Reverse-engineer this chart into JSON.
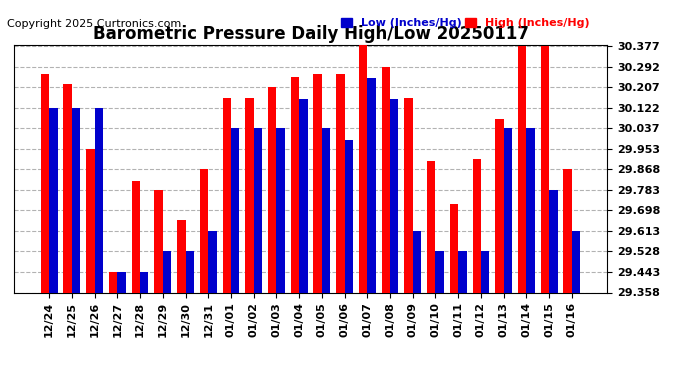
{
  "title": "Barometric Pressure Daily High/Low 20250117",
  "copyright": "Copyright 2025 Curtronics.com",
  "legend_low": "Low (Inches/Hg)",
  "legend_high": "High (Inches/Hg)",
  "categories": [
    "12/24",
    "12/25",
    "12/26",
    "12/27",
    "12/28",
    "12/29",
    "12/30",
    "12/31",
    "01/01",
    "01/02",
    "01/03",
    "01/04",
    "01/05",
    "01/06",
    "01/07",
    "01/08",
    "01/09",
    "01/10",
    "01/11",
    "01/12",
    "01/13",
    "01/14",
    "01/15",
    "01/16"
  ],
  "high_values": [
    30.26,
    30.22,
    29.953,
    29.443,
    29.82,
    29.783,
    29.66,
    29.868,
    30.163,
    30.163,
    30.207,
    30.248,
    30.26,
    30.26,
    30.385,
    30.292,
    30.163,
    29.9,
    29.725,
    29.91,
    30.075,
    30.377,
    30.377,
    29.868
  ],
  "low_values": [
    30.122,
    30.122,
    30.122,
    29.443,
    29.443,
    29.528,
    29.528,
    29.613,
    30.037,
    30.037,
    30.037,
    30.16,
    30.037,
    29.99,
    30.245,
    30.16,
    29.613,
    29.528,
    29.528,
    29.528,
    30.037,
    30.037,
    29.783,
    29.613
  ],
  "ymin": 29.358,
  "ymax": 30.377,
  "yticks": [
    29.358,
    29.443,
    29.528,
    29.613,
    29.698,
    29.783,
    29.868,
    29.953,
    30.037,
    30.122,
    30.207,
    30.292,
    30.377
  ],
  "bar_color_high": "#ff0000",
  "bar_color_low": "#0000cc",
  "bg_color": "#ffffff",
  "title_fontsize": 12,
  "copyright_fontsize": 8,
  "tick_fontsize": 8,
  "bar_width": 0.37
}
